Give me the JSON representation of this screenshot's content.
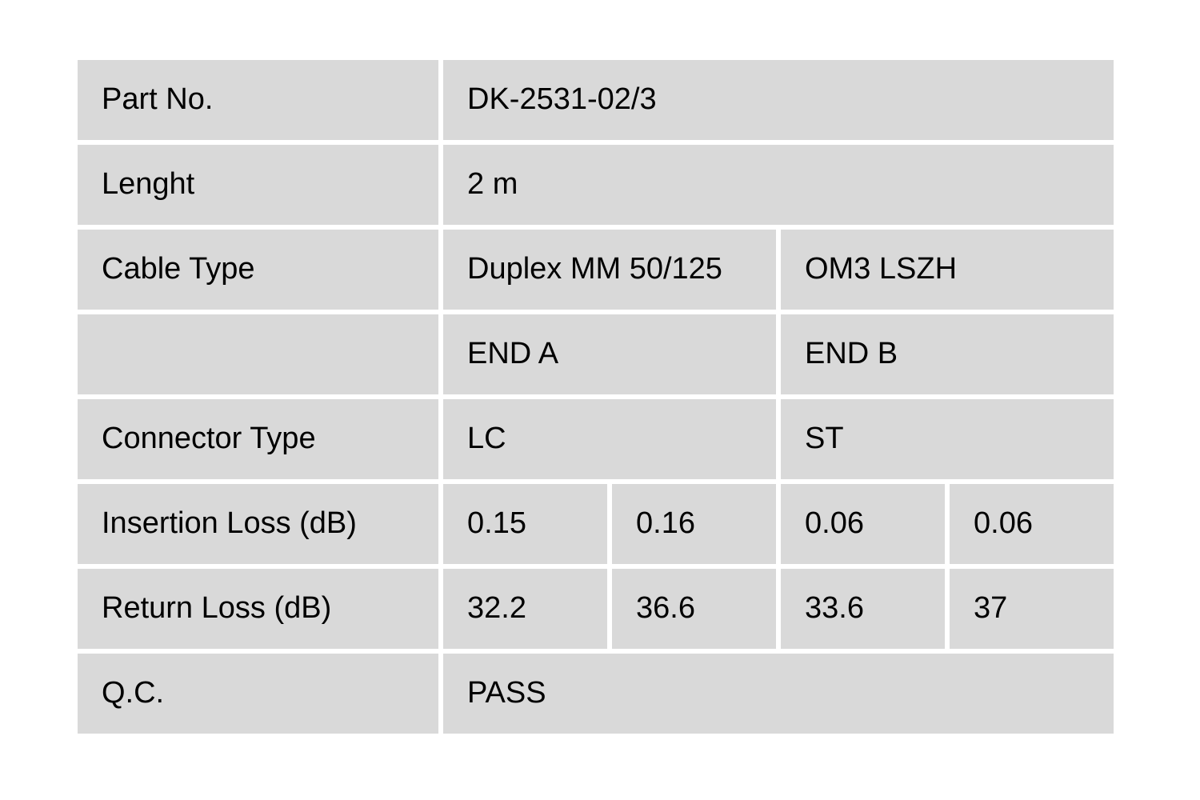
{
  "page": {
    "background": "#ffffff"
  },
  "colors": {
    "cell_bg": "#d9d9d9",
    "gap": "#ffffff",
    "text": "#000000"
  },
  "table": {
    "name": "cable-qc-spec-table",
    "rows": [
      {
        "label": "Part No.",
        "cells": [
          {
            "value": "DK-2531-02/3",
            "span": 4
          }
        ]
      },
      {
        "label": "Lenght",
        "cells": [
          {
            "value": "2 m",
            "span": 4
          }
        ]
      },
      {
        "label": "Cable Type",
        "cells": [
          {
            "value": "Duplex MM 50/125",
            "span": 2
          },
          {
            "value": "OM3 LSZH",
            "span": 2
          }
        ]
      },
      {
        "label": "",
        "cells": [
          {
            "value": "END A",
            "span": 2
          },
          {
            "value": "END B",
            "span": 2
          }
        ]
      },
      {
        "label": "Connector Type",
        "cells": [
          {
            "value": "LC",
            "span": 2
          },
          {
            "value": "ST",
            "span": 2
          }
        ]
      },
      {
        "label": "Insertion Loss (dB)",
        "cells": [
          {
            "value": "0.15",
            "span": 1
          },
          {
            "value": "0.16",
            "span": 1
          },
          {
            "value": "0.06",
            "span": 1
          },
          {
            "value": "0.06",
            "span": 1
          }
        ]
      },
      {
        "label": "Return Loss (dB)",
        "cells": [
          {
            "value": "32.2",
            "span": 1
          },
          {
            "value": "36.6",
            "span": 1
          },
          {
            "value": "33.6",
            "span": 1
          },
          {
            "value": "37",
            "span": 1
          }
        ]
      },
      {
        "label": "Q.C.",
        "cells": [
          {
            "value": "PASS",
            "span": 4
          }
        ]
      }
    ]
  }
}
